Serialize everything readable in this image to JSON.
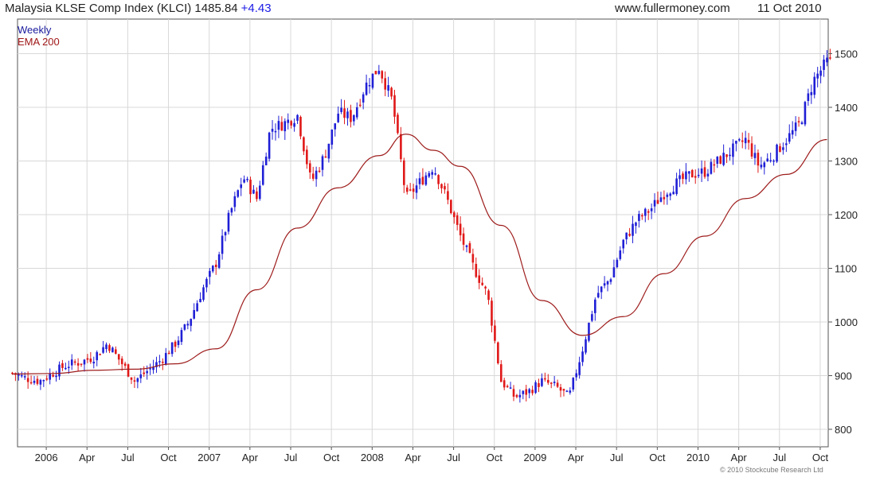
{
  "header": {
    "title": "Malaysia KLSE Comp Index (KLCI) 1485.84",
    "change": "+4.43",
    "site": "www.fullermoney.com",
    "date": "11 Oct 2010"
  },
  "footer": {
    "copyright": "© 2010 Stockcube Research Ltd"
  },
  "colors": {
    "up": "#1f1fd6",
    "down": "#e01818",
    "ema": "#9e1c1c",
    "grid": "#d8d8d8"
  },
  "chart_data": {
    "type": "line",
    "title": "Malaysia KLSE Comp Index (KLCI) 1485.84",
    "series": [
      {
        "name": "Weekly",
        "kind": "candlestick"
      },
      {
        "name": "EMA 200",
        "kind": "line"
      }
    ],
    "ylim": [
      780,
      1530
    ],
    "yticks": [
      800,
      900,
      1000,
      1100,
      1200,
      1300,
      1400,
      1500
    ],
    "xlabels": [
      "2006",
      "Apr",
      "Jul",
      "Oct",
      "2007",
      "Apr",
      "Jul",
      "Oct",
      "2008",
      "Apr",
      "Jul",
      "Oct",
      "2009",
      "Apr",
      "Jul",
      "Oct",
      "2010",
      "Apr",
      "Jul",
      "Oct"
    ],
    "grid": true,
    "legend": "top-left",
    "close_points": [
      [
        "2005-10",
        905
      ],
      [
        "2005-11",
        895
      ],
      [
        "2005-12",
        890
      ],
      [
        "2006-01",
        905
      ],
      [
        "2006-02",
        920
      ],
      [
        "2006-03",
        925
      ],
      [
        "2006-04",
        935
      ],
      [
        "2006-05",
        960
      ],
      [
        "2006-06",
        925
      ],
      [
        "2006-07",
        890
      ],
      [
        "2006-08",
        910
      ],
      [
        "2006-09",
        930
      ],
      [
        "2006-10",
        960
      ],
      [
        "2006-11",
        1000
      ],
      [
        "2006-12",
        1060
      ],
      [
        "2007-01",
        1110
      ],
      [
        "2007-02",
        1200
      ],
      [
        "2007-03",
        1270
      ],
      [
        "2007-04",
        1230
      ],
      [
        "2007-05",
        1360
      ],
      [
        "2007-06",
        1370
      ],
      [
        "2007-07",
        1385
      ],
      [
        "2007-08",
        1260
      ],
      [
        "2007-09",
        1310
      ],
      [
        "2007-10",
        1390
      ],
      [
        "2007-11",
        1380
      ],
      [
        "2007-12",
        1440
      ],
      [
        "2008-01",
        1475
      ],
      [
        "2008-02",
        1410
      ],
      [
        "2008-03",
        1230
      ],
      [
        "2008-04",
        1260
      ],
      [
        "2008-05",
        1290
      ],
      [
        "2008-06",
        1230
      ],
      [
        "2008-07",
        1160
      ],
      [
        "2008-08",
        1100
      ],
      [
        "2008-09",
        1050
      ],
      [
        "2008-10",
        890
      ],
      [
        "2008-11",
        860
      ],
      [
        "2008-12",
        870
      ],
      [
        "2009-01",
        890
      ],
      [
        "2009-02",
        880
      ],
      [
        "2009-03",
        860
      ],
      [
        "2009-04",
        950
      ],
      [
        "2009-05",
        1050
      ],
      [
        "2009-06",
        1080
      ],
      [
        "2009-07",
        1150
      ],
      [
        "2009-08",
        1190
      ],
      [
        "2009-09",
        1210
      ],
      [
        "2009-10",
        1240
      ],
      [
        "2009-11",
        1260
      ],
      [
        "2009-12",
        1275
      ],
      [
        "2010-01",
        1280
      ],
      [
        "2010-02",
        1300
      ],
      [
        "2010-03",
        1320
      ],
      [
        "2010-04",
        1340
      ],
      [
        "2010-05",
        1290
      ],
      [
        "2010-06",
        1310
      ],
      [
        "2010-07",
        1340
      ],
      [
        "2010-08",
        1370
      ],
      [
        "2010-09",
        1450
      ],
      [
        "2010-10",
        1485
      ]
    ],
    "ema_points": [
      [
        "2005-10",
        903
      ],
      [
        "2006-01",
        904
      ],
      [
        "2006-04",
        910
      ],
      [
        "2006-07",
        912
      ],
      [
        "2006-10",
        922
      ],
      [
        "2007-01",
        950
      ],
      [
        "2007-04",
        1060
      ],
      [
        "2007-07",
        1175
      ],
      [
        "2007-10",
        1250
      ],
      [
        "2008-01",
        1310
      ],
      [
        "2008-03",
        1350
      ],
      [
        "2008-05",
        1320
      ],
      [
        "2008-07",
        1290
      ],
      [
        "2008-10",
        1180
      ],
      [
        "2009-01",
        1040
      ],
      [
        "2009-04",
        975
      ],
      [
        "2009-07",
        1010
      ],
      [
        "2009-10",
        1090
      ],
      [
        "2010-01",
        1160
      ],
      [
        "2010-04",
        1230
      ],
      [
        "2010-07",
        1275
      ],
      [
        "2010-10",
        1340
      ]
    ]
  }
}
